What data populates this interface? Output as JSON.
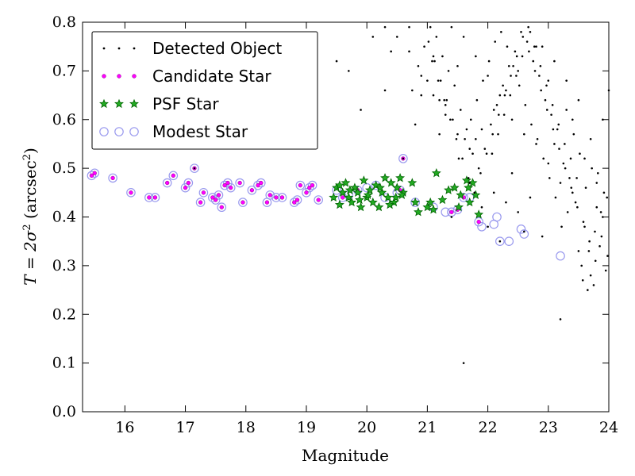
{
  "chart_data": {
    "type": "scatter",
    "xlabel": "Magnitude",
    "ylabel_main": "T = 2σ",
    "ylabel_sup1": "2",
    "ylabel_unit": " (arcsec",
    "ylabel_sup2": "2",
    "ylabel_close": ")",
    "xlim": [
      15.3,
      24
    ],
    "ylim": [
      0.0,
      0.8
    ],
    "xticks": [
      "16",
      "17",
      "18",
      "19",
      "20",
      "21",
      "22",
      "23",
      "24"
    ],
    "xtick_values": [
      16,
      17,
      18,
      19,
      20,
      21,
      22,
      23,
      24
    ],
    "yticks": [
      "0.0",
      "0.1",
      "0.2",
      "0.3",
      "0.4",
      "0.5",
      "0.6",
      "0.7",
      "0.8"
    ],
    "ytick_values": [
      0.0,
      0.1,
      0.2,
      0.3,
      0.4,
      0.5,
      0.6,
      0.7,
      0.8
    ],
    "legend_position": "top-left",
    "legend": [
      {
        "label": "Detected Object",
        "marker": "dot"
      },
      {
        "label": "Candidate Star",
        "marker": "magenta-dot"
      },
      {
        "label": "PSF Star",
        "marker": "green-star"
      },
      {
        "label": "Modest Star",
        "marker": "open-circle"
      }
    ],
    "colors": {
      "detected": "#000000",
      "candidate": "#ff00ff",
      "psf_fill": "#22aa22",
      "psf_edge": "#006400",
      "modest": "#9999ee"
    },
    "series": [
      {
        "name": "Detected Object",
        "x": [
          17.15,
          21.6,
          23.2,
          22.6,
          22.2,
          22.0,
          21.9,
          21.7,
          21.4,
          20.6,
          22.1,
          22.5,
          22.3,
          21.8,
          21.3,
          21.5,
          22.8,
          23.0,
          23.4,
          23.6,
          23.8,
          23.9,
          23.5,
          23.7,
          22.9,
          22.7,
          22.4,
          23.1,
          23.3,
          24.0,
          19.5,
          19.7,
          20.1,
          20.4,
          20.7,
          20.9,
          21.1,
          19.9,
          20.3,
          20.8,
          21.0,
          21.2,
          23.65,
          23.75,
          23.55,
          23.85,
          23.95,
          23.45,
          23.35,
          23.25,
          23.15,
          23.05,
          22.95,
          22.85,
          22.75,
          22.65,
          22.55,
          22.45,
          22.35,
          22.25,
          22.15,
          22.05,
          21.95,
          21.85,
          21.75,
          21.65,
          21.55,
          21.45,
          21.35,
          21.25,
          21.15,
          21.05,
          20.95,
          20.85,
          20.75,
          23.6,
          23.8,
          23.4,
          23.2,
          23.0,
          22.8,
          22.6,
          22.4,
          22.2,
          22.0,
          21.8,
          21.6,
          21.4,
          21.2,
          23.7,
          23.9,
          23.5,
          23.3,
          23.1,
          22.9,
          22.7,
          22.5,
          22.3,
          22.1,
          21.9,
          21.7,
          21.5,
          21.3,
          21.1,
          20.9,
          20.7,
          20.5,
          20.3,
          23.62,
          23.72,
          23.52,
          23.82,
          23.92,
          23.42,
          23.32,
          23.22,
          23.12,
          23.02,
          22.92,
          22.82,
          22.72,
          22.62,
          22.52,
          22.42,
          22.32,
          22.22,
          22.12,
          22.02,
          21.92,
          21.82,
          21.72,
          21.62,
          21.52,
          21.42,
          21.32,
          21.22,
          21.12,
          21.02,
          23.68,
          23.78,
          23.58,
          23.88,
          23.98,
          23.48,
          23.38,
          23.28,
          23.18,
          23.08,
          22.98,
          22.88,
          22.78,
          22.68,
          22.58,
          22.48,
          22.38,
          22.28,
          22.18,
          22.08,
          21.98,
          21.88,
          21.78,
          21.68,
          21.58,
          21.48,
          21.38,
          21.28,
          21.18,
          21.08,
          23.57,
          23.67,
          23.77,
          23.87,
          23.97,
          23.47,
          23.37,
          23.27,
          23.17,
          23.07,
          22.97,
          22.87,
          22.77,
          22.67,
          22.57,
          22.47,
          22.37,
          22.27,
          22.17,
          22.07
        ],
        "y": [
          0.5,
          0.1,
          0.19,
          0.37,
          0.35,
          0.38,
          0.42,
          0.47,
          0.4,
          0.52,
          0.45,
          0.41,
          0.43,
          0.56,
          0.63,
          0.71,
          0.75,
          0.68,
          0.6,
          0.52,
          0.47,
          0.4,
          0.33,
          0.28,
          0.36,
          0.44,
          0.49,
          0.55,
          0.62,
          0.66,
          0.72,
          0.7,
          0.77,
          0.74,
          0.79,
          0.65,
          0.73,
          0.62,
          0.66,
          0.59,
          0.68,
          0.57,
          0.25,
          0.26,
          0.3,
          0.34,
          0.29,
          0.43,
          0.48,
          0.51,
          0.58,
          0.61,
          0.64,
          0.69,
          0.72,
          0.76,
          0.78,
          0.74,
          0.71,
          0.67,
          0.63,
          0.59,
          0.54,
          0.5,
          0.53,
          0.58,
          0.62,
          0.67,
          0.7,
          0.73,
          0.77,
          0.79,
          0.75,
          0.71,
          0.66,
          0.38,
          0.42,
          0.45,
          0.47,
          0.51,
          0.55,
          0.57,
          0.6,
          0.65,
          0.69,
          0.73,
          0.77,
          0.79,
          0.64,
          0.56,
          0.6,
          0.64,
          0.68,
          0.72,
          0.75,
          0.78,
          0.7,
          0.66,
          0.62,
          0.58,
          0.54,
          0.57,
          0.61,
          0.65,
          0.69,
          0.74,
          0.77,
          0.79,
          0.46,
          0.5,
          0.53,
          0.49,
          0.45,
          0.57,
          0.41,
          0.38,
          0.44,
          0.48,
          0.52,
          0.56,
          0.59,
          0.63,
          0.67,
          0.71,
          0.75,
          0.78,
          0.76,
          0.72,
          0.68,
          0.64,
          0.6,
          0.56,
          0.52,
          0.6,
          0.64,
          0.68,
          0.72,
          0.76,
          0.35,
          0.31,
          0.39,
          0.36,
          0.32,
          0.42,
          0.46,
          0.5,
          0.54,
          0.58,
          0.62,
          0.66,
          0.7,
          0.74,
          0.77,
          0.73,
          0.69,
          0.65,
          0.61,
          0.57,
          0.53,
          0.49,
          0.45,
          0.48,
          0.52,
          0.56,
          0.6,
          0.64,
          0.68,
          0.72,
          0.27,
          0.33,
          0.37,
          0.41,
          0.44,
          0.48,
          0.52,
          0.55,
          0.59,
          0.63,
          0.67,
          0.71,
          0.75,
          0.79,
          0.73,
          0.69,
          0.65,
          0.61,
          0.57,
          0.53
        ]
      },
      {
        "name": "Candidate Star",
        "x": [
          15.45,
          15.5,
          15.8,
          16.1,
          16.4,
          16.5,
          16.7,
          16.8,
          17.0,
          17.05,
          17.15,
          17.25,
          17.3,
          17.45,
          17.5,
          17.55,
          17.6,
          17.65,
          17.7,
          17.75,
          17.9,
          17.95,
          18.1,
          18.2,
          18.25,
          18.35,
          18.4,
          18.5,
          18.6,
          18.8,
          18.85,
          18.9,
          19.0,
          19.05,
          19.1,
          19.2,
          19.6,
          19.85,
          20.15,
          20.55,
          20.6,
          21.4,
          21.5,
          21.6,
          21.85
        ],
        "y": [
          0.485,
          0.49,
          0.48,
          0.45,
          0.44,
          0.44,
          0.47,
          0.485,
          0.46,
          0.47,
          0.5,
          0.43,
          0.45,
          0.44,
          0.435,
          0.445,
          0.42,
          0.465,
          0.47,
          0.46,
          0.47,
          0.43,
          0.455,
          0.465,
          0.47,
          0.43,
          0.445,
          0.44,
          0.44,
          0.43,
          0.435,
          0.465,
          0.45,
          0.46,
          0.465,
          0.435,
          0.44,
          0.455,
          0.465,
          0.455,
          0.52,
          0.41,
          0.415,
          0.44,
          0.39
        ]
      },
      {
        "name": "PSF Star",
        "x": [
          19.45,
          19.5,
          19.55,
          19.6,
          19.65,
          19.7,
          19.75,
          19.8,
          19.85,
          19.9,
          19.95,
          20.0,
          20.05,
          20.1,
          20.15,
          20.2,
          20.25,
          20.3,
          20.35,
          20.4,
          20.45,
          20.5,
          20.55,
          20.6,
          20.75,
          20.8,
          20.85,
          21.0,
          21.05,
          21.1,
          21.15,
          21.25,
          21.35,
          21.45,
          21.55,
          21.65,
          21.7,
          21.75,
          21.8,
          21.85,
          19.55,
          19.72,
          19.88,
          20.02,
          20.22,
          20.38,
          20.48,
          20.58,
          21.52,
          21.68
        ],
        "y": [
          0.44,
          0.46,
          0.425,
          0.45,
          0.47,
          0.44,
          0.43,
          0.46,
          0.45,
          0.42,
          0.475,
          0.44,
          0.455,
          0.43,
          0.465,
          0.42,
          0.45,
          0.48,
          0.44,
          0.47,
          0.43,
          0.46,
          0.48,
          0.45,
          0.47,
          0.43,
          0.41,
          0.42,
          0.43,
          0.415,
          0.49,
          0.435,
          0.455,
          0.46,
          0.445,
          0.475,
          0.43,
          0.47,
          0.445,
          0.405,
          0.465,
          0.455,
          0.435,
          0.445,
          0.46,
          0.425,
          0.44,
          0.445,
          0.42,
          0.46
        ]
      },
      {
        "name": "Modest Star",
        "x": [
          15.45,
          15.5,
          15.8,
          16.1,
          16.4,
          16.5,
          16.7,
          16.8,
          17.0,
          17.05,
          17.15,
          17.25,
          17.3,
          17.45,
          17.5,
          17.55,
          17.6,
          17.65,
          17.7,
          17.75,
          17.9,
          17.95,
          18.1,
          18.2,
          18.25,
          18.35,
          18.4,
          18.5,
          18.6,
          18.8,
          18.85,
          18.9,
          19.0,
          19.05,
          19.1,
          19.2,
          19.6,
          19.85,
          20.15,
          20.55,
          20.6,
          21.4,
          21.5,
          21.6,
          21.85,
          21.9,
          22.1,
          22.15,
          22.2,
          22.35,
          22.55,
          22.6,
          23.2,
          19.5,
          19.7,
          20.0,
          20.3,
          20.5,
          20.8,
          21.1,
          21.3,
          21.7
        ],
        "y": [
          0.485,
          0.49,
          0.48,
          0.45,
          0.44,
          0.44,
          0.47,
          0.485,
          0.46,
          0.47,
          0.5,
          0.43,
          0.45,
          0.44,
          0.435,
          0.445,
          0.42,
          0.465,
          0.47,
          0.46,
          0.47,
          0.43,
          0.455,
          0.465,
          0.47,
          0.43,
          0.445,
          0.44,
          0.44,
          0.43,
          0.435,
          0.465,
          0.45,
          0.46,
          0.465,
          0.435,
          0.44,
          0.455,
          0.465,
          0.455,
          0.52,
          0.41,
          0.415,
          0.44,
          0.39,
          0.38,
          0.385,
          0.4,
          0.35,
          0.35,
          0.375,
          0.365,
          0.32,
          0.455,
          0.445,
          0.46,
          0.44,
          0.45,
          0.43,
          0.42,
          0.41,
          0.44
        ]
      }
    ]
  }
}
